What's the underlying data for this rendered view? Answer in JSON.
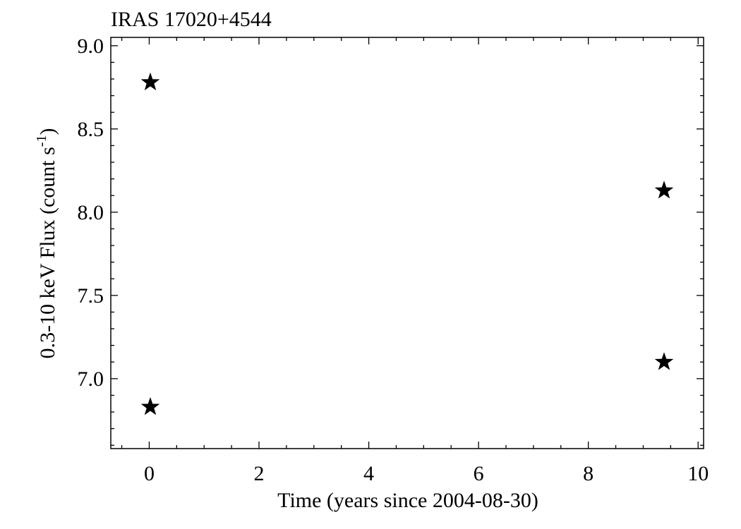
{
  "chart_data": {
    "type": "scatter",
    "title": "IRAS 17020+4544",
    "xlabel": "Time (years since 2004-08-30)",
    "ylabel": "0.3-10 keV Flux (count s",
    "ylabel_superscript": "-1",
    "ylabel_suffix": ")",
    "xlim": [
      -0.7,
      10.1
    ],
    "ylim": [
      6.58,
      9.05
    ],
    "x_major_ticks": [
      0,
      2,
      4,
      6,
      8,
      10
    ],
    "x_tick_labels": [
      "0",
      "2",
      "4",
      "6",
      "8",
      "10"
    ],
    "x_minor_step": 0.5,
    "y_major_ticks": [
      7.0,
      7.5,
      8.0,
      8.5,
      9.0
    ],
    "y_tick_labels": [
      "7.0",
      "7.5",
      "8.0",
      "8.5",
      "9.0"
    ],
    "y_minor_step": 0.1,
    "grid": false,
    "legend": "none",
    "marker": "star",
    "marker_color": "#000000",
    "series": [
      {
        "x": [
          0.02,
          0.02,
          9.38,
          9.38
        ],
        "y": [
          8.78,
          6.83,
          8.13,
          7.1
        ]
      }
    ]
  }
}
